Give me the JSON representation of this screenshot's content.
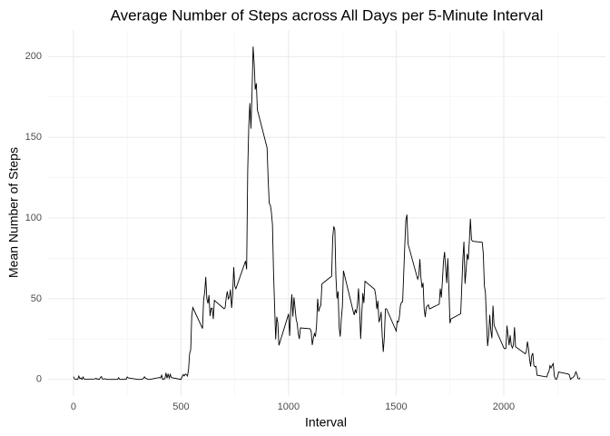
{
  "chart_data": {
    "type": "line",
    "title": "Average Number of Steps across All Days per 5-Minute Interval",
    "x_label": "Interval",
    "y_label": "Mean Number of Steps",
    "xlim": [
      -117.75,
      2472.75
    ],
    "xticks": [
      0,
      500,
      1000,
      1500,
      2000
    ],
    "xminor": [
      250,
      750,
      1250,
      1750,
      2250
    ],
    "ylim": [
      -10.3,
      216.5
    ],
    "yticks": [
      0,
      50,
      100,
      150,
      200
    ],
    "yminor": [
      25,
      75,
      125,
      175
    ],
    "grid": true,
    "x": [
      0,
      5,
      10,
      15,
      20,
      25,
      30,
      35,
      40,
      45,
      50,
      55,
      100,
      105,
      110,
      115,
      120,
      125,
      130,
      135,
      140,
      145,
      150,
      155,
      200,
      205,
      210,
      215,
      220,
      225,
      230,
      235,
      240,
      245,
      250,
      255,
      300,
      305,
      310,
      315,
      320,
      325,
      330,
      335,
      340,
      345,
      350,
      355,
      400,
      405,
      410,
      415,
      420,
      425,
      430,
      435,
      440,
      445,
      450,
      455,
      500,
      505,
      510,
      515,
      520,
      525,
      530,
      535,
      540,
      545,
      550,
      555,
      600,
      605,
      610,
      615,
      620,
      625,
      630,
      635,
      640,
      645,
      650,
      655,
      700,
      705,
      710,
      715,
      720,
      725,
      730,
      735,
      740,
      745,
      750,
      755,
      800,
      805,
      810,
      815,
      820,
      825,
      830,
      835,
      840,
      845,
      850,
      855,
      900,
      905,
      910,
      915,
      920,
      925,
      930,
      935,
      940,
      945,
      950,
      955,
      1000,
      1005,
      1010,
      1015,
      1020,
      1025,
      1030,
      1035,
      1040,
      1045,
      1050,
      1055,
      1100,
      1105,
      1110,
      1115,
      1120,
      1125,
      1130,
      1135,
      1140,
      1145,
      1150,
      1155,
      1200,
      1205,
      1210,
      1215,
      1220,
      1225,
      1230,
      1235,
      1240,
      1245,
      1250,
      1255,
      1300,
      1305,
      1310,
      1315,
      1320,
      1325,
      1330,
      1335,
      1340,
      1345,
      1350,
      1355,
      1400,
      1405,
      1410,
      1415,
      1420,
      1425,
      1430,
      1435,
      1440,
      1445,
      1450,
      1455,
      1500,
      1505,
      1510,
      1515,
      1520,
      1525,
      1530,
      1535,
      1540,
      1545,
      1550,
      1555,
      1600,
      1605,
      1610,
      1615,
      1620,
      1625,
      1630,
      1635,
      1640,
      1645,
      1650,
      1655,
      1700,
      1705,
      1710,
      1715,
      1720,
      1725,
      1730,
      1735,
      1740,
      1745,
      1750,
      1755,
      1800,
      1805,
      1810,
      1815,
      1820,
      1825,
      1830,
      1835,
      1840,
      1845,
      1850,
      1855,
      1900,
      1905,
      1910,
      1915,
      1920,
      1925,
      1930,
      1935,
      1940,
      1945,
      1950,
      1955,
      2000,
      2005,
      2010,
      2015,
      2020,
      2025,
      2030,
      2035,
      2040,
      2045,
      2050,
      2055,
      2100,
      2105,
      2110,
      2115,
      2120,
      2125,
      2130,
      2135,
      2140,
      2145,
      2150,
      2155,
      2200,
      2205,
      2210,
      2215,
      2220,
      2225,
      2230,
      2235,
      2240,
      2245,
      2250,
      2255,
      2300,
      2305,
      2310,
      2315,
      2320,
      2325,
      2330,
      2335,
      2340,
      2345,
      2350,
      2355
    ],
    "series": [
      {
        "color": "#000000",
        "values": [
          1.7,
          0.3,
          0.1,
          0.2,
          0.1,
          2.1,
          0.5,
          0.9,
          0,
          1.5,
          0.3,
          0.1,
          0.3,
          0.7,
          0.2,
          0.3,
          0,
          1.1,
          1.8,
          0.2,
          0.2,
          0.4,
          0.3,
          0,
          0,
          0,
          1.1,
          0,
          0,
          0.1,
          0,
          0.2,
          0,
          0,
          1.5,
          0.9,
          0,
          0,
          0,
          0,
          0.2,
          0.6,
          1.6,
          0.6,
          0.5,
          0.1,
          0,
          0,
          1.2,
          0.9,
          2.6,
          0,
          0.3,
          0.4,
          4.1,
          0.7,
          3.5,
          0.8,
          3.1,
          1.1,
          0,
          1.6,
          3.0,
          2.2,
          3.3,
          3.0,
          2.1,
          6.1,
          16.0,
          18.3,
          39.5,
          44.5,
          31.5,
          49.3,
          53.8,
          63.5,
          50.0,
          47.1,
          52.2,
          39.3,
          44.0,
          44.2,
          37.4,
          49.0,
          43.8,
          44.4,
          50.5,
          54.5,
          49.9,
          51.0,
          55.7,
          44.3,
          52.3,
          69.5,
          57.8,
          56.2,
          73.4,
          68.2,
          129.4,
          157.5,
          171.2,
          155.4,
          177.3,
          206.2,
          195.9,
          179.6,
          183.4,
          167.0,
          143.5,
          124.0,
          109.1,
          108.1,
          103.7,
          96.0,
          66.2,
          45.2,
          24.8,
          38.8,
          35.0,
          21.1,
          40.6,
          27.0,
          42.4,
          52.7,
          38.9,
          50.8,
          44.3,
          37.4,
          34.7,
          28.3,
          25.1,
          31.9,
          31.4,
          29.7,
          21.3,
          25.5,
          28.4,
          26.5,
          33.4,
          50.0,
          42.0,
          44.6,
          46.0,
          59.2,
          63.9,
          87.7,
          94.8,
          92.8,
          63.4,
          50.2,
          54.5,
          32.4,
          26.5,
          37.7,
          45.1,
          67.3,
          42.3,
          39.9,
          43.3,
          41.0,
          46.2,
          56.4,
          42.8,
          25.1,
          40.0,
          53.5,
          47.3,
          60.8,
          55.8,
          52.0,
          43.6,
          48.7,
          35.5,
          37.5,
          41.8,
          27.5,
          17.1,
          26.1,
          43.6,
          43.8,
          30.0,
          36.1,
          35.5,
          38.8,
          46.0,
          47.8,
          48.1,
          65.3,
          82.9,
          98.7,
          102.1,
          84.0,
          62.1,
          64.1,
          74.5,
          63.2,
          56.9,
          59.8,
          43.9,
          38.6,
          44.7,
          45.5,
          46.2,
          43.7,
          46.6,
          56.3,
          50.7,
          61.2,
          73.4,
          79.0,
          68.9,
          59.7,
          75.1,
          56.5,
          34.8,
          37.5,
          40.7,
          58.0,
          74.7,
          85.3,
          59.3,
          67.8,
          77.7,
          74.2,
          85.3,
          99.5,
          86.6,
          85.6,
          84.9,
          77.8,
          58.0,
          53.4,
          36.3,
          20.7,
          27.4,
          40.0,
          30.2,
          25.5,
          45.7,
          33.5,
          19.6,
          19.0,
          19.3,
          33.3,
          26.8,
          21.2,
          27.3,
          21.3,
          19.5,
          21.3,
          32.3,
          20.2,
          15.9,
          17.2,
          23.5,
          19.2,
          12.5,
          8.0,
          14.7,
          16.3,
          8.7,
          7.8,
          8.1,
          2.6,
          1.5,
          3.7,
          4.8,
          8.5,
          7.1,
          8.7,
          9.8,
          2.2,
          0.3,
          0.1,
          1.6,
          4.6,
          3.3,
          2.8,
          0,
          0.8,
          1.0,
          1.6,
          2.6,
          4.7,
          3.3,
          0.6,
          0.2,
          1.1
        ]
      }
    ]
  }
}
